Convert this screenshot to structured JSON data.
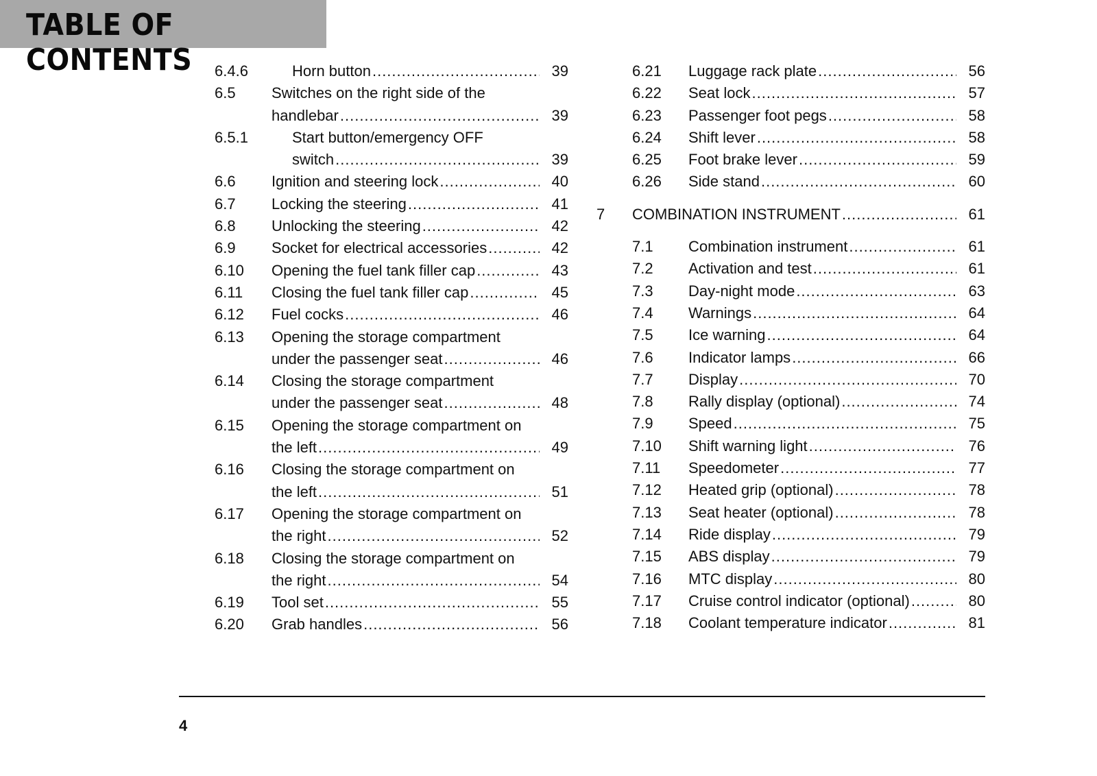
{
  "header": {
    "title": "TABLE OF CONTENTS",
    "background": "#a8a8a8"
  },
  "left_column": [
    {
      "num": "6.4.6",
      "lines": [
        "Horn button"
      ],
      "page": "39",
      "level": 3
    },
    {
      "num": "6.5",
      "lines": [
        "Switches on the right side of the",
        "handlebar"
      ],
      "page": "39",
      "level": 2
    },
    {
      "num": "6.5.1",
      "lines": [
        "Start button/emergency OFF",
        "switch"
      ],
      "page": "39",
      "level": 3
    },
    {
      "num": "6.6",
      "lines": [
        "Ignition and steering lock"
      ],
      "page": "40",
      "level": 2
    },
    {
      "num": "6.7",
      "lines": [
        "Locking the steering"
      ],
      "page": "41",
      "level": 2
    },
    {
      "num": "6.8",
      "lines": [
        "Unlocking the steering"
      ],
      "page": "42",
      "level": 2
    },
    {
      "num": "6.9",
      "lines": [
        "Socket for electrical accessories"
      ],
      "page": "42",
      "level": 2
    },
    {
      "num": "6.10",
      "lines": [
        "Opening the fuel tank filler cap"
      ],
      "page": "43",
      "level": 2
    },
    {
      "num": "6.11",
      "lines": [
        "Closing the fuel tank filler cap"
      ],
      "page": "45",
      "level": 2
    },
    {
      "num": "6.12",
      "lines": [
        "Fuel cocks"
      ],
      "page": "46",
      "level": 2
    },
    {
      "num": "6.13",
      "lines": [
        "Opening the storage compartment",
        "under the passenger seat"
      ],
      "page": "46",
      "level": 2
    },
    {
      "num": "6.14",
      "lines": [
        "Closing the storage compartment",
        "under the passenger seat"
      ],
      "page": "48",
      "level": 2
    },
    {
      "num": "6.15",
      "lines": [
        "Opening the storage compartment on",
        "the left"
      ],
      "page": "49",
      "level": 2
    },
    {
      "num": "6.16",
      "lines": [
        "Closing the storage compartment on",
        "the left"
      ],
      "page": "51",
      "level": 2
    },
    {
      "num": "6.17",
      "lines": [
        "Opening the storage compartment on",
        "the right"
      ],
      "page": "52",
      "level": 2
    },
    {
      "num": "6.18",
      "lines": [
        "Closing the storage compartment on",
        "the right"
      ],
      "page": "54",
      "level": 2
    },
    {
      "num": "6.19",
      "lines": [
        "Tool set"
      ],
      "page": "55",
      "level": 2
    },
    {
      "num": "6.20",
      "lines": [
        "Grab handles"
      ],
      "page": "56",
      "level": 2
    }
  ],
  "right_column": [
    {
      "num": "6.21",
      "lines": [
        "Luggage rack plate"
      ],
      "page": "56",
      "level": 2
    },
    {
      "num": "6.22",
      "lines": [
        "Seat lock"
      ],
      "page": "57",
      "level": 2
    },
    {
      "num": "6.23",
      "lines": [
        "Passenger foot pegs"
      ],
      "page": "58",
      "level": 2
    },
    {
      "num": "6.24",
      "lines": [
        "Shift lever"
      ],
      "page": "58",
      "level": 2
    },
    {
      "num": "6.25",
      "lines": [
        "Foot brake lever"
      ],
      "page": "59",
      "level": 2
    },
    {
      "num": "6.26",
      "lines": [
        "Side stand"
      ],
      "page": "60",
      "level": 2
    },
    {
      "num": "7",
      "lines": [
        "COMBINATION INSTRUMENT"
      ],
      "page": "61",
      "level": 1
    },
    {
      "num": "7.1",
      "lines": [
        "Combination instrument"
      ],
      "page": "61",
      "level": 2
    },
    {
      "num": "7.2",
      "lines": [
        "Activation and test"
      ],
      "page": "61",
      "level": 2
    },
    {
      "num": "7.3",
      "lines": [
        "Day-night mode"
      ],
      "page": "63",
      "level": 2
    },
    {
      "num": "7.4",
      "lines": [
        "Warnings"
      ],
      "page": "64",
      "level": 2
    },
    {
      "num": "7.5",
      "lines": [
        "Ice warning"
      ],
      "page": "64",
      "level": 2
    },
    {
      "num": "7.6",
      "lines": [
        "Indicator lamps"
      ],
      "page": "66",
      "level": 2
    },
    {
      "num": "7.7",
      "lines": [
        "Display"
      ],
      "page": "70",
      "level": 2
    },
    {
      "num": "7.8",
      "lines": [
        "Rally display (optional)"
      ],
      "page": "74",
      "level": 2
    },
    {
      "num": "7.9",
      "lines": [
        "Speed"
      ],
      "page": "75",
      "level": 2
    },
    {
      "num": "7.10",
      "lines": [
        "Shift warning light"
      ],
      "page": "76",
      "level": 2
    },
    {
      "num": "7.11",
      "lines": [
        "Speedometer"
      ],
      "page": "77",
      "level": 2
    },
    {
      "num": "7.12",
      "lines": [
        "Heated grip (optional)"
      ],
      "page": "78",
      "level": 2
    },
    {
      "num": "7.13",
      "lines": [
        "Seat heater (optional)"
      ],
      "page": "78",
      "level": 2
    },
    {
      "num": "7.14",
      "lines": [
        "Ride display"
      ],
      "page": "79",
      "level": 2
    },
    {
      "num": "7.15",
      "lines": [
        "ABS display"
      ],
      "page": "79",
      "level": 2
    },
    {
      "num": "7.16",
      "lines": [
        "MTC display"
      ],
      "page": "80",
      "level": 2
    },
    {
      "num": "7.17",
      "lines": [
        "Cruise control indicator (optional)"
      ],
      "page": "80",
      "level": 2
    },
    {
      "num": "7.18",
      "lines": [
        "Coolant temperature indicator"
      ],
      "page": "81",
      "level": 2
    }
  ],
  "footer": {
    "page_number": "4"
  }
}
